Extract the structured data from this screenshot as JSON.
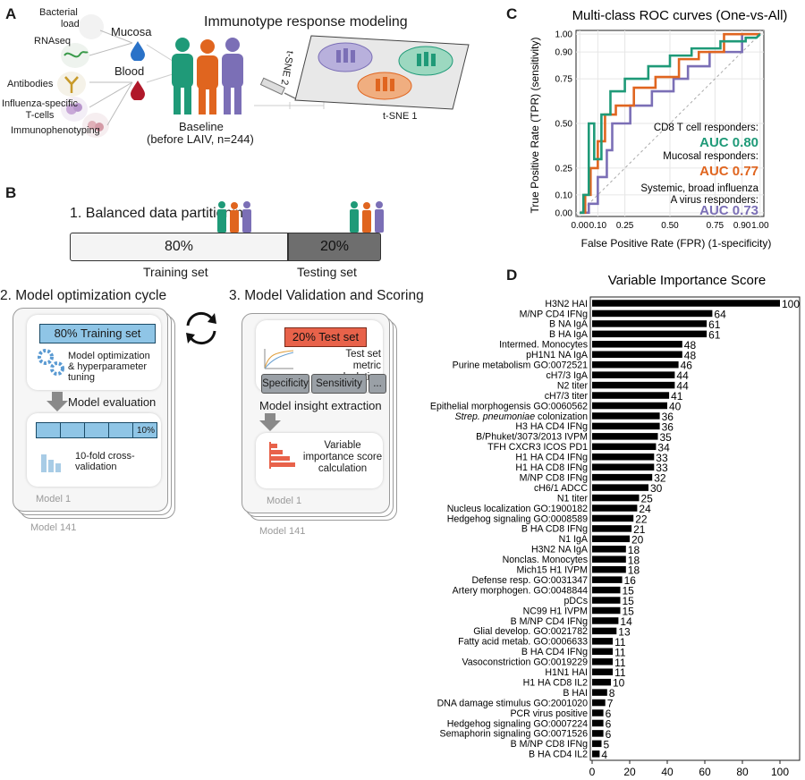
{
  "panel_a": {
    "label": "A",
    "title": "Immunotype response modeling",
    "inputs": [
      "Bacterial load",
      "RNAseq",
      "Antibodies",
      "Influenza-specific T-cells",
      "Immunophenotyping"
    ],
    "input_lines": {
      "bacterial": [
        "Bacterial",
        "load"
      ],
      "tcells": [
        "Influenza-specific",
        "T-cells"
      ]
    },
    "mucosa": "Mucosa",
    "blood": "Blood",
    "baseline": "Baseline",
    "baseline_sub": "(before LAIV, n=244)",
    "tsne1": "t-SNE 1",
    "tsne2": "t-SNE 2",
    "colors": {
      "green": "#1f9a78",
      "orange": "#e0651f",
      "purple": "#7b6fb6"
    }
  },
  "panel_b": {
    "label": "B",
    "step1": "1. Balanced data partitioning",
    "train_pct": "80%",
    "test_pct": "20%",
    "train_label": "Training set",
    "test_label": "Testing set",
    "step2": "2. Model optimization cycle",
    "step3": "3. Model Validation and Scoring",
    "train_box": "80% Training set",
    "opt_text": [
      "Model optimization",
      "& hyperparameter",
      "tuning"
    ],
    "model_eval": "Model evaluation",
    "fold_label": "10%",
    "cv_text": [
      "10-fold cross-",
      "validation"
    ],
    "model_1": "Model 1",
    "model_141": "Model 141",
    "test_box": "20% Test set",
    "metric_text": [
      "Test set metric",
      "calculation"
    ],
    "metrics": [
      "Specificity",
      "Sensitivity",
      "..."
    ],
    "insight": "Model insight extraction",
    "vis_text": [
      "Variable",
      "importance score",
      "calculation"
    ]
  },
  "chart_data": [
    {
      "type": "line",
      "panel": "C",
      "title": "Multi-class ROC curves (One-vs-All)",
      "xlabel": "False Positive Rate (FPR) (1-specificity)",
      "ylabel": "True Positive Rate (TPR) (sensitivity)",
      "xlim": [
        0,
        1
      ],
      "ylim": [
        0,
        1
      ],
      "x_ticks": [
        "0.00",
        "0.10",
        "0.25",
        "0.50",
        "0.75",
        "0.90",
        "1.00"
      ],
      "y_ticks": [
        "0.00",
        "0.10",
        "0.25",
        "0.50",
        "0.75",
        "0.90",
        "1.00"
      ],
      "series": [
        {
          "name": "CD8 T cell responders:",
          "auc": "AUC 0.80",
          "color": "#1f9a78",
          "x": [
            0.0,
            0.02,
            0.02,
            0.05,
            0.05,
            0.08,
            0.08,
            0.12,
            0.12,
            0.17,
            0.17,
            0.25,
            0.25,
            0.38,
            0.38,
            0.5,
            0.5,
            0.62,
            0.62,
            0.78,
            0.78,
            0.92,
            0.92,
            0.98,
            1.0
          ],
          "y": [
            0.0,
            0.0,
            0.1,
            0.1,
            0.5,
            0.5,
            0.3,
            0.3,
            0.55,
            0.55,
            0.68,
            0.68,
            0.75,
            0.75,
            0.82,
            0.82,
            0.88,
            0.88,
            0.92,
            0.92,
            0.96,
            0.96,
            0.98,
            0.98,
            1.0
          ]
        },
        {
          "name": "Mucosal responders:",
          "auc": "AUC 0.77",
          "color": "#e0651f",
          "x": [
            0.0,
            0.03,
            0.03,
            0.06,
            0.06,
            0.1,
            0.1,
            0.14,
            0.14,
            0.2,
            0.2,
            0.3,
            0.3,
            0.42,
            0.42,
            0.55,
            0.55,
            0.66,
            0.66,
            0.8,
            0.8,
            1.0
          ],
          "y": [
            0.0,
            0.0,
            0.1,
            0.1,
            0.25,
            0.25,
            0.4,
            0.4,
            0.55,
            0.55,
            0.6,
            0.6,
            0.7,
            0.7,
            0.76,
            0.76,
            0.86,
            0.86,
            0.9,
            0.9,
            1.0,
            1.0
          ]
        },
        {
          "name": "Systemic, broad influenza A virus responders:",
          "auc": "AUC 0.73",
          "color": "#7b6fb6",
          "x": [
            0.0,
            0.05,
            0.05,
            0.1,
            0.1,
            0.15,
            0.15,
            0.18,
            0.18,
            0.28,
            0.28,
            0.4,
            0.4,
            0.52,
            0.52,
            0.6,
            0.6,
            0.72,
            0.72,
            0.9,
            0.9,
            1.0
          ],
          "y": [
            0.0,
            0.0,
            0.05,
            0.05,
            0.2,
            0.2,
            0.35,
            0.35,
            0.5,
            0.5,
            0.6,
            0.6,
            0.68,
            0.68,
            0.75,
            0.75,
            0.82,
            0.82,
            0.9,
            0.9,
            1.0,
            1.0
          ]
        }
      ]
    },
    {
      "type": "bar",
      "panel": "D",
      "orientation": "horizontal",
      "title": "Variable Importance Score",
      "xlim": [
        0,
        100
      ],
      "x_ticks": [
        "0",
        "20",
        "40",
        "60",
        "80",
        "100"
      ],
      "categories": [
        "H3N2 HAI",
        "M/NP CD4 IFNg",
        "B NA IgA",
        "B HA IgA",
        "Intermed. Monocytes",
        "pH1N1 NA IgA",
        "Purine metabolism GO:0072521",
        "cH7/3 IgA",
        "N2 titer",
        "cH7/3 titer",
        "Epithelial morphogensis GO:0060562",
        "Strep. pneumoniae colonization",
        "H3 HA CD4 IFNg",
        "B/Phuket/3073/2013 IVPM",
        "TFH CXCR3 ICOS PD1",
        "H1 HA CD4 IFNg",
        "H1 HA CD8 IFNg",
        "M/NP CD8 IFNg",
        "cH6/1 ADCC",
        "N1 titer",
        "Nucleus localization GO:1900182",
        "Hedgehog signaling GO:0008589",
        "B HA CD8 IFNg",
        "N1 IgA",
        "H3N2 NA IgA",
        "Nonclas. Monocytes",
        "Mich15 H1 IVPM",
        "Defense resp. GO:0031347",
        "Artery morphogen. GO:0048844",
        "pDCs",
        "NC99 H1 IVPM",
        "B M/NP CD4 IFNg",
        "Glial develop. GO:0021782",
        "Fatty acid metab. GO:0006633",
        "B HA CD4 IFNg",
        "Vasoconstriction GO:0019229",
        "H1N1 HAI",
        "H1 HA CD8 IL2",
        "B HAI",
        "DNA damage stimulus GO:2001020",
        "PCR virus positive",
        "Hedgehog signaling GO:0007224",
        "Semaphorin signaling GO:0071526",
        "B M/NP CD8 IFNg",
        "B HA CD4 IL2"
      ],
      "values": [
        100,
        64,
        61,
        61,
        48,
        48,
        46,
        44,
        44,
        41,
        40,
        36,
        36,
        35,
        34,
        33,
        33,
        32,
        30,
        25,
        24,
        22,
        21,
        20,
        18,
        18,
        18,
        16,
        15,
        15,
        15,
        14,
        13,
        11,
        11,
        11,
        11,
        10,
        8,
        7,
        6,
        6,
        6,
        5,
        4
      ]
    }
  ]
}
